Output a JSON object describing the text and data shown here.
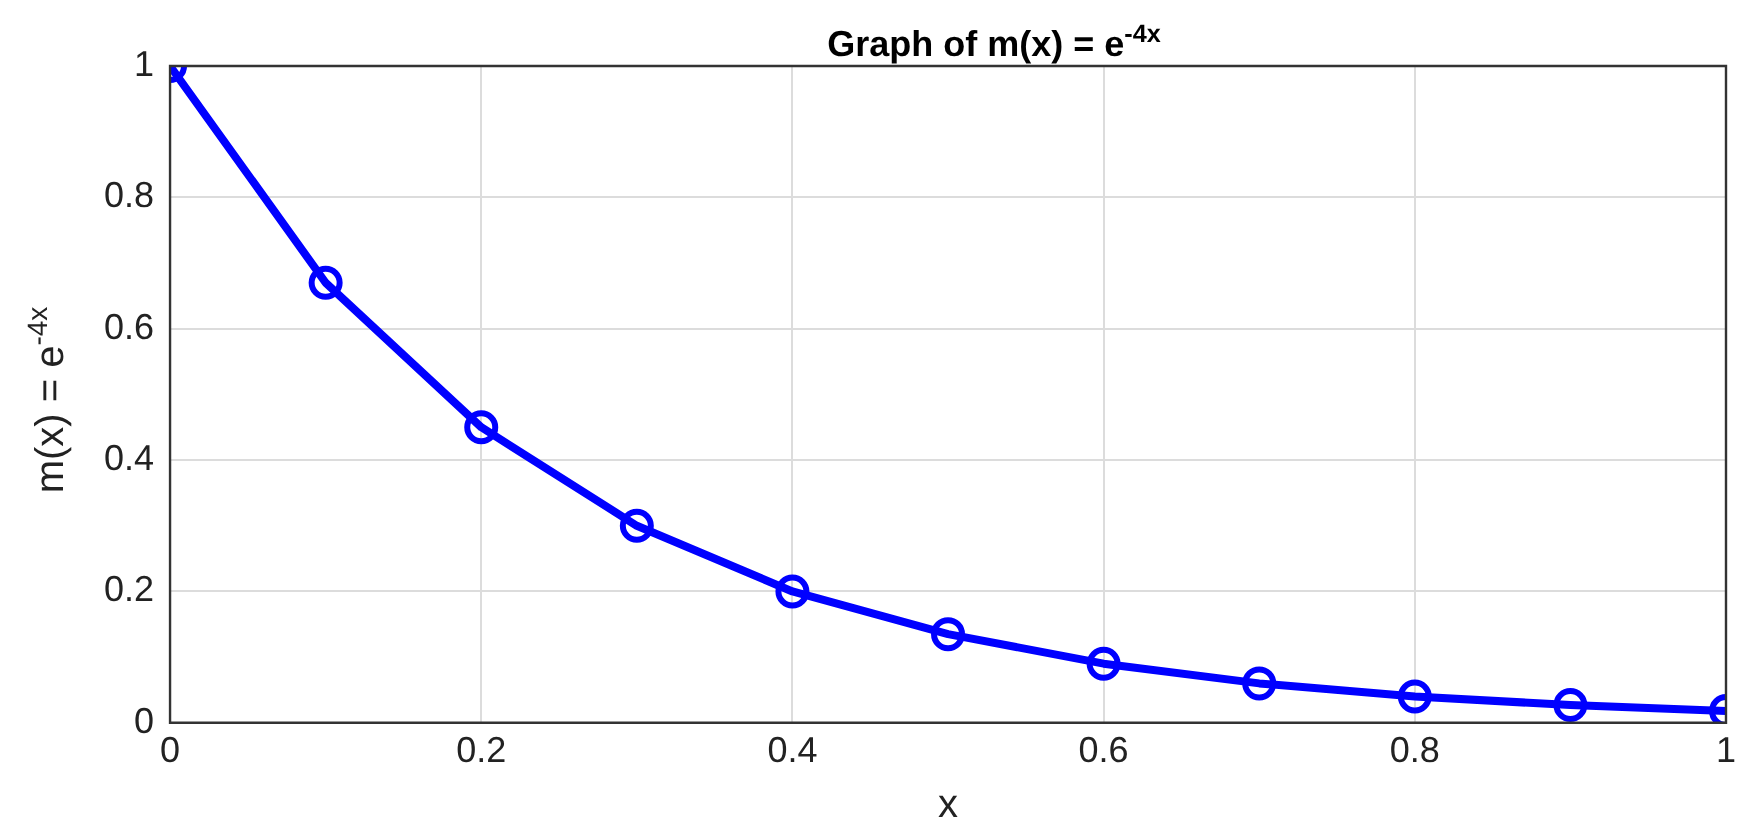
{
  "chart_data": {
    "type": "line",
    "title": "Graph of m(x) = e$^{-4x}$",
    "xlabel": "x",
    "ylabel": "m(x) = e$^{-4x}$",
    "x": [
      0,
      0.1,
      0.2,
      0.3,
      0.4,
      0.5,
      0.6,
      0.7,
      0.8,
      0.9,
      1
    ],
    "series": [
      {
        "color": "#0000ff",
        "values": [
          1,
          0.67,
          0.45,
          0.3,
          0.2,
          0.135,
          0.09,
          0.06,
          0.04,
          0.027,
          0.018
        ]
      }
    ],
    "xlim": [
      0,
      1
    ],
    "xticks": [
      0,
      0.2,
      0.4,
      0.6,
      0.8,
      1
    ],
    "ylim": [
      0,
      1
    ],
    "yticks": [
      0,
      0.2,
      0.4,
      0.6,
      0.8,
      1
    ],
    "grid": true,
    "legend": false,
    "marker": "circle",
    "line_style": "solid"
  }
}
